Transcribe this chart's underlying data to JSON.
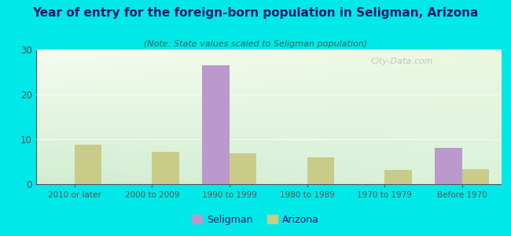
{
  "title": "Year of entry for the foreign-born population in Seligman, Arizona",
  "subtitle": "(Note: State values scaled to Seligman population)",
  "categories": [
    "2010 or later",
    "2000 to 2009",
    "1990 to 1999",
    "1980 to 1989",
    "1970 to 1979",
    "Before 1970"
  ],
  "seligman_values": [
    0,
    0,
    26.5,
    0,
    0,
    8
  ],
  "arizona_values": [
    8.8,
    7.2,
    6.8,
    6.0,
    3.2,
    3.3
  ],
  "seligman_color": "#bb99cc",
  "arizona_color": "#c8cc88",
  "background_outer": "#00e8e8",
  "title_color": "#1a1a6e",
  "subtitle_color": "#336655",
  "axis_color": "#555555",
  "tick_color": "#555555",
  "ylim": [
    0,
    30
  ],
  "yticks": [
    0,
    10,
    20,
    30
  ],
  "bar_width": 0.35,
  "legend_seligman": "Seligman",
  "legend_arizona": "Arizona",
  "watermark": "City-Data.com"
}
